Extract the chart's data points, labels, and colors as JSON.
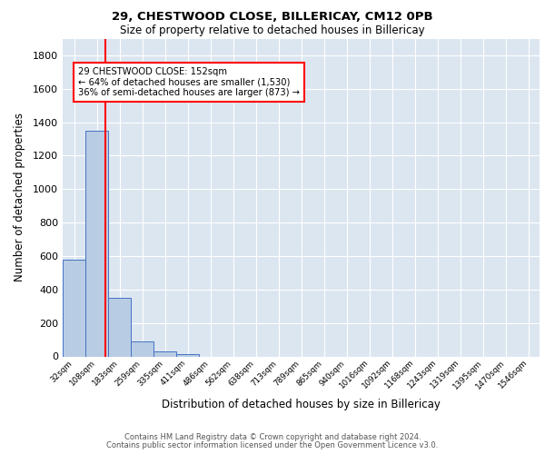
{
  "title1": "29, CHESTWOOD CLOSE, BILLERICAY, CM12 0PB",
  "title2": "Size of property relative to detached houses in Billericay",
  "xlabel": "Distribution of detached houses by size in Billericay",
  "ylabel": "Number of detached properties",
  "footer1": "Contains HM Land Registry data © Crown copyright and database right 2024.",
  "footer2": "Contains public sector information licensed under the Open Government Licence v3.0.",
  "bin_labels": [
    "32sqm",
    "108sqm",
    "183sqm",
    "259sqm",
    "335sqm",
    "411sqm",
    "486sqm",
    "562sqm",
    "638sqm",
    "713sqm",
    "789sqm",
    "865sqm",
    "940sqm",
    "1016sqm",
    "1092sqm",
    "1168sqm",
    "1243sqm",
    "1319sqm",
    "1395sqm",
    "1470sqm",
    "1546sqm"
  ],
  "bar_values": [
    580,
    1350,
    350,
    90,
    28,
    15,
    0,
    0,
    0,
    0,
    0,
    0,
    0,
    0,
    0,
    0,
    0,
    0,
    0,
    0,
    0
  ],
  "bar_color": "#b8cce4",
  "bar_edge_color": "#4472c4",
  "background_color": "#dce6f1",
  "grid_color": "#ffffff",
  "vline_x": 1.38,
  "vline_color": "#ff0000",
  "annotation_text": "29 CHESTWOOD CLOSE: 152sqm\n← 64% of detached houses are smaller (1,530)\n36% of semi-detached houses are larger (873) →",
  "annotation_box_color": "#ffffff",
  "annotation_box_edge": "#ff0000",
  "ylim": [
    0,
    1900
  ],
  "yticks": [
    0,
    200,
    400,
    600,
    800,
    1000,
    1200,
    1400,
    1600,
    1800
  ]
}
